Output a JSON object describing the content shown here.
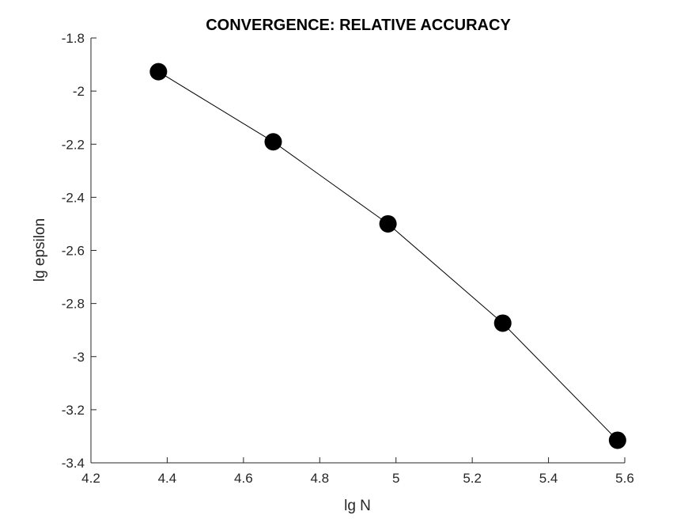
{
  "chart_data": {
    "type": "line",
    "title": "CONVERGENCE: RELATIVE ACCURACY",
    "xlabel": "lg N",
    "ylabel": "lg epsilon",
    "xlim": [
      4.2,
      5.6
    ],
    "ylim": [
      -3.4,
      -1.8
    ],
    "xticks": [
      4.2,
      4.4,
      4.6,
      4.8,
      5.0,
      5.2,
      5.4,
      5.6
    ],
    "xtick_labels": [
      "4.2",
      "4.4",
      "4.6",
      "4.8",
      "5",
      "5.2",
      "5.4",
      "5.6"
    ],
    "yticks": [
      -1.8,
      -2.0,
      -2.2,
      -2.4,
      -2.6,
      -2.8,
      -3.0,
      -3.2,
      -3.4
    ],
    "ytick_labels": [
      "-1.8",
      "-2",
      "-2.2",
      "-2.4",
      "-2.6",
      "-2.8",
      "-3",
      "-3.2",
      "-3.4"
    ],
    "grid": false,
    "box": false,
    "series": [
      {
        "x": [
          4.377,
          4.678,
          4.979,
          5.28,
          5.581
        ],
        "y": [
          -1.927,
          -2.191,
          -2.5,
          -2.874,
          -3.315
        ],
        "line_color": "#000000",
        "marker": "filled-circle",
        "marker_color": "#000000"
      }
    ]
  }
}
